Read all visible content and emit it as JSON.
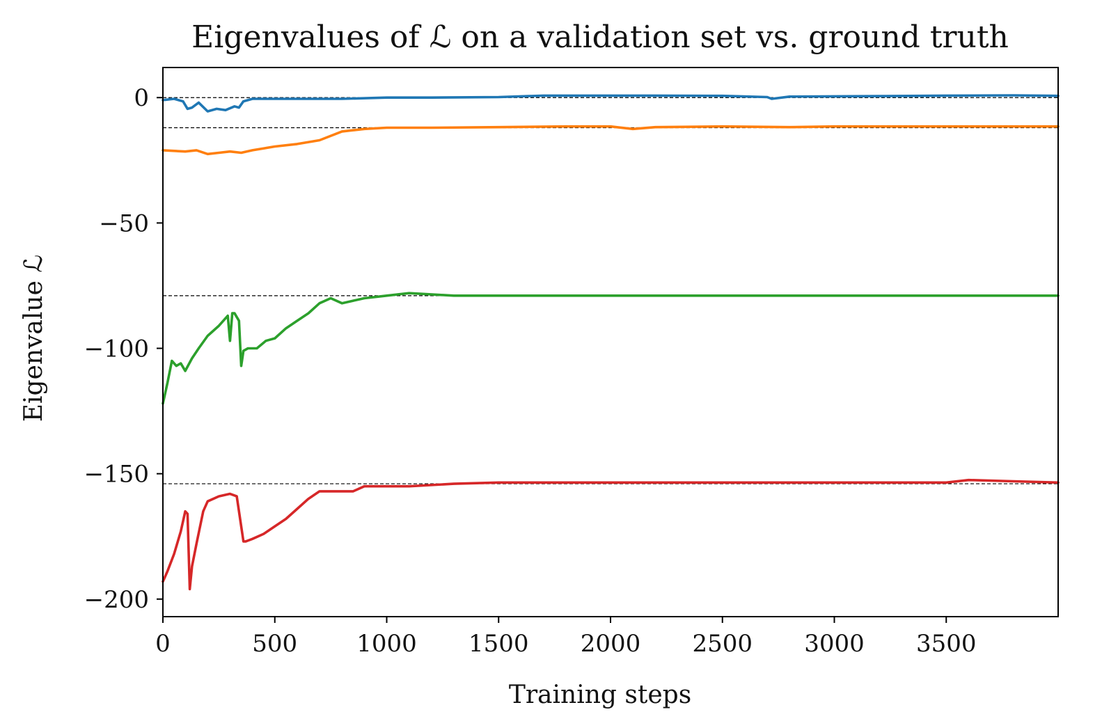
{
  "chart_data": {
    "type": "line",
    "title": "Eigenvalues of ℒ on a validation set vs. ground truth",
    "xlabel": "Training steps",
    "ylabel": "Eigenvalue ℒ",
    "xlim": [
      0,
      4000
    ],
    "ylim": [
      -207,
      12
    ],
    "xticks": [
      0,
      500,
      1000,
      1500,
      2000,
      2500,
      3000,
      3500
    ],
    "xtick_labels": [
      "0",
      "500",
      "1000",
      "1500",
      "2000",
      "2500",
      "3000",
      "3500"
    ],
    "yticks": [
      0,
      -50,
      -100,
      -150,
      -200
    ],
    "ytick_labels": [
      "0",
      "−50",
      "−100",
      "−150",
      "−200"
    ],
    "grid": false,
    "ground_truth": [
      0,
      -12,
      -79,
      -154
    ],
    "ground_truth_style": "dashed black",
    "series": [
      {
        "color": "#1f77b4",
        "x": [
          0,
          50,
          90,
          110,
          130,
          160,
          200,
          240,
          280,
          320,
          340,
          360,
          400,
          600,
          800,
          1000,
          1200,
          1500,
          1700,
          2000,
          2200,
          2500,
          2700,
          2720,
          2800,
          3000,
          3200,
          3500,
          3800,
          4000
        ],
        "values": [
          -1,
          -0.5,
          -1.5,
          -4.5,
          -4,
          -2,
          -5.5,
          -4.5,
          -5,
          -3.5,
          -4,
          -1.5,
          -0.5,
          -0.5,
          -0.5,
          0,
          0,
          0.2,
          0.8,
          0.8,
          0.8,
          0.7,
          0.2,
          -0.5,
          0.4,
          0.5,
          0.6,
          0.8,
          0.9,
          0.7
        ]
      },
      {
        "color": "#ff7f0e",
        "x": [
          0,
          100,
          150,
          200,
          250,
          300,
          350,
          400,
          500,
          600,
          700,
          800,
          850,
          900,
          1000,
          1200,
          1500,
          1800,
          2000,
          2100,
          2200,
          2500,
          2800,
          3000,
          3500,
          3800,
          4000
        ],
        "values": [
          -21,
          -21.5,
          -21,
          -22.5,
          -22,
          -21.5,
          -22,
          -21,
          -19.5,
          -18.5,
          -17,
          -13.5,
          -13,
          -12.5,
          -12,
          -12,
          -11.8,
          -11.5,
          -11.5,
          -12.5,
          -11.8,
          -11.5,
          -11.8,
          -11.5,
          -11.5,
          -11.5,
          -11.5
        ]
      },
      {
        "color": "#2ca02c",
        "x": [
          0,
          20,
          40,
          60,
          80,
          100,
          130,
          160,
          200,
          250,
          290,
          300,
          310,
          320,
          340,
          350,
          360,
          380,
          420,
          460,
          500,
          550,
          600,
          650,
          700,
          750,
          800,
          850,
          900,
          1000,
          1100,
          1300,
          1500,
          1800,
          2000,
          2300,
          2500,
          2700,
          3000,
          3300,
          3500,
          3800,
          4000
        ],
        "values": [
          -122,
          -114,
          -105,
          -107,
          -106,
          -109,
          -104,
          -100,
          -95,
          -91,
          -87,
          -97,
          -86,
          -86,
          -89,
          -107,
          -101,
          -100,
          -100,
          -97,
          -96,
          -92,
          -89,
          -86,
          -82,
          -80,
          -82,
          -81,
          -80,
          -79,
          -78,
          -79,
          -79,
          -79,
          -79,
          -79,
          -79,
          -79,
          -79,
          -79,
          -79,
          -79,
          -79
        ]
      },
      {
        "color": "#d62728",
        "x": [
          0,
          20,
          50,
          80,
          100,
          110,
          120,
          130,
          150,
          180,
          200,
          250,
          300,
          330,
          350,
          360,
          370,
          400,
          450,
          500,
          550,
          600,
          650,
          700,
          750,
          800,
          850,
          900,
          1000,
          1100,
          1300,
          1500,
          1800,
          2000,
          2300,
          2500,
          2800,
          3000,
          3300,
          3500,
          3600,
          3800,
          4000
        ],
        "values": [
          -193,
          -189,
          -182,
          -173,
          -165,
          -166,
          -196,
          -187,
          -178,
          -165,
          -161,
          -159,
          -158,
          -159,
          -171,
          -177,
          -177,
          -176,
          -174,
          -171,
          -168,
          -164,
          -160,
          -157,
          -157,
          -157,
          -157,
          -155,
          -155,
          -155,
          -154,
          -153.5,
          -153.5,
          -153.5,
          -153.5,
          -153.5,
          -153.5,
          -153.5,
          -153.5,
          -153.5,
          -152.5,
          -153,
          -153.5
        ]
      }
    ]
  }
}
